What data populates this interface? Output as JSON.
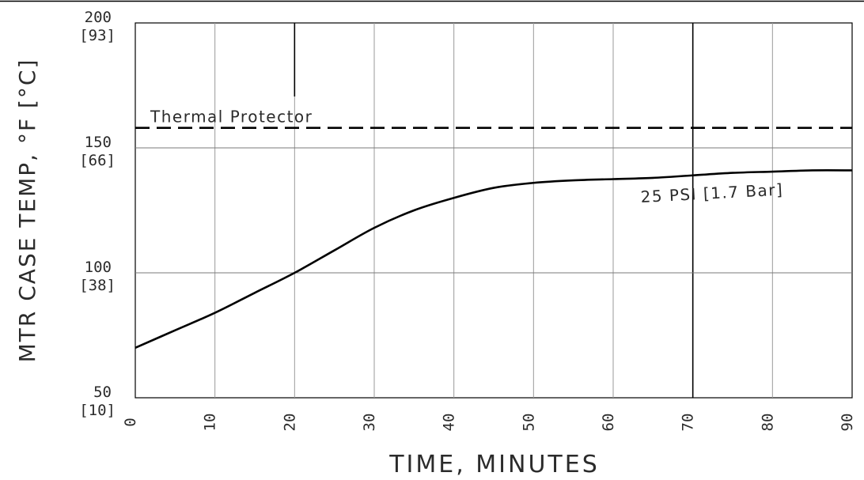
{
  "chart_data": {
    "type": "line",
    "xlabel": "TIME, MINUTES",
    "ylabel": "MTR CASE TEMP, °F [°C]",
    "xlim": [
      0,
      90
    ],
    "ylim": [
      50,
      200
    ],
    "x_ticks": [
      "0",
      "10",
      "20",
      "30",
      "40",
      "50",
      "60",
      "70",
      "80",
      "90"
    ],
    "y_ticks": [
      {
        "value": 200,
        "f": "200",
        "c": "[93]"
      },
      {
        "value": 150,
        "f": "150",
        "c": "[66]"
      },
      {
        "value": 100,
        "f": "100",
        "c": "[38]"
      },
      {
        "value": 50,
        "f": "50",
        "c": "[10]"
      }
    ],
    "grid": true,
    "reference_line": {
      "label": "Thermal Protector",
      "value": 158,
      "style": "dashed"
    },
    "series": [
      {
        "name": "25 PSI [1.7 Bar]",
        "x": [
          0,
          5,
          10,
          15,
          20,
          25,
          30,
          35,
          40,
          45,
          50,
          55,
          60,
          65,
          70,
          75,
          80,
          85,
          90
        ],
        "y": [
          70,
          77,
          84,
          92,
          100,
          109,
          118,
          125,
          130,
          134,
          136,
          137,
          137.5,
          138,
          139,
          140,
          140.5,
          141,
          141
        ]
      }
    ]
  }
}
